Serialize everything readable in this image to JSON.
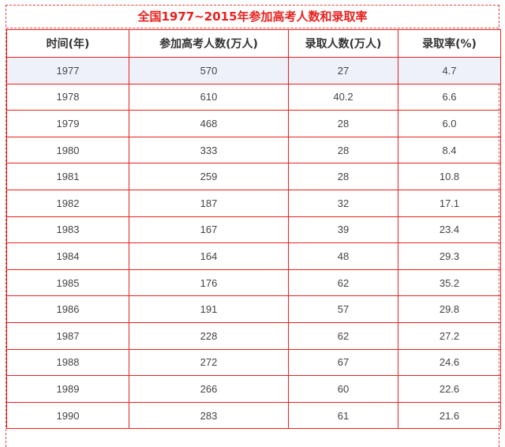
{
  "title": "全国1977~2015年参加高考人数和录取率",
  "colors": {
    "title": "#e8211e",
    "border": "#e8211e",
    "highlight_row": "#eef1f9"
  },
  "table": {
    "headers": [
      "时间(年)",
      "参加高考人数(万人)",
      "录取人数(万人)",
      "录取率(%)"
    ],
    "rows": [
      [
        "1977",
        "570",
        "27",
        "4.7"
      ],
      [
        "1978",
        "610",
        "40.2",
        "6.6"
      ],
      [
        "1979",
        "468",
        "28",
        "6.0"
      ],
      [
        "1980",
        "333",
        "28",
        "8.4"
      ],
      [
        "1981",
        "259",
        "28",
        "10.8"
      ],
      [
        "1982",
        "187",
        "32",
        "17.1"
      ],
      [
        "1983",
        "167",
        "39",
        "23.4"
      ],
      [
        "1984",
        "164",
        "48",
        "29.3"
      ],
      [
        "1985",
        "176",
        "62",
        "35.2"
      ],
      [
        "1986",
        "191",
        "57",
        "29.8"
      ],
      [
        "1987",
        "228",
        "62",
        "27.2"
      ],
      [
        "1988",
        "272",
        "67",
        "24.6"
      ],
      [
        "1989",
        "266",
        "60",
        "22.6"
      ],
      [
        "1990",
        "283",
        "61",
        "21.6"
      ]
    ]
  }
}
